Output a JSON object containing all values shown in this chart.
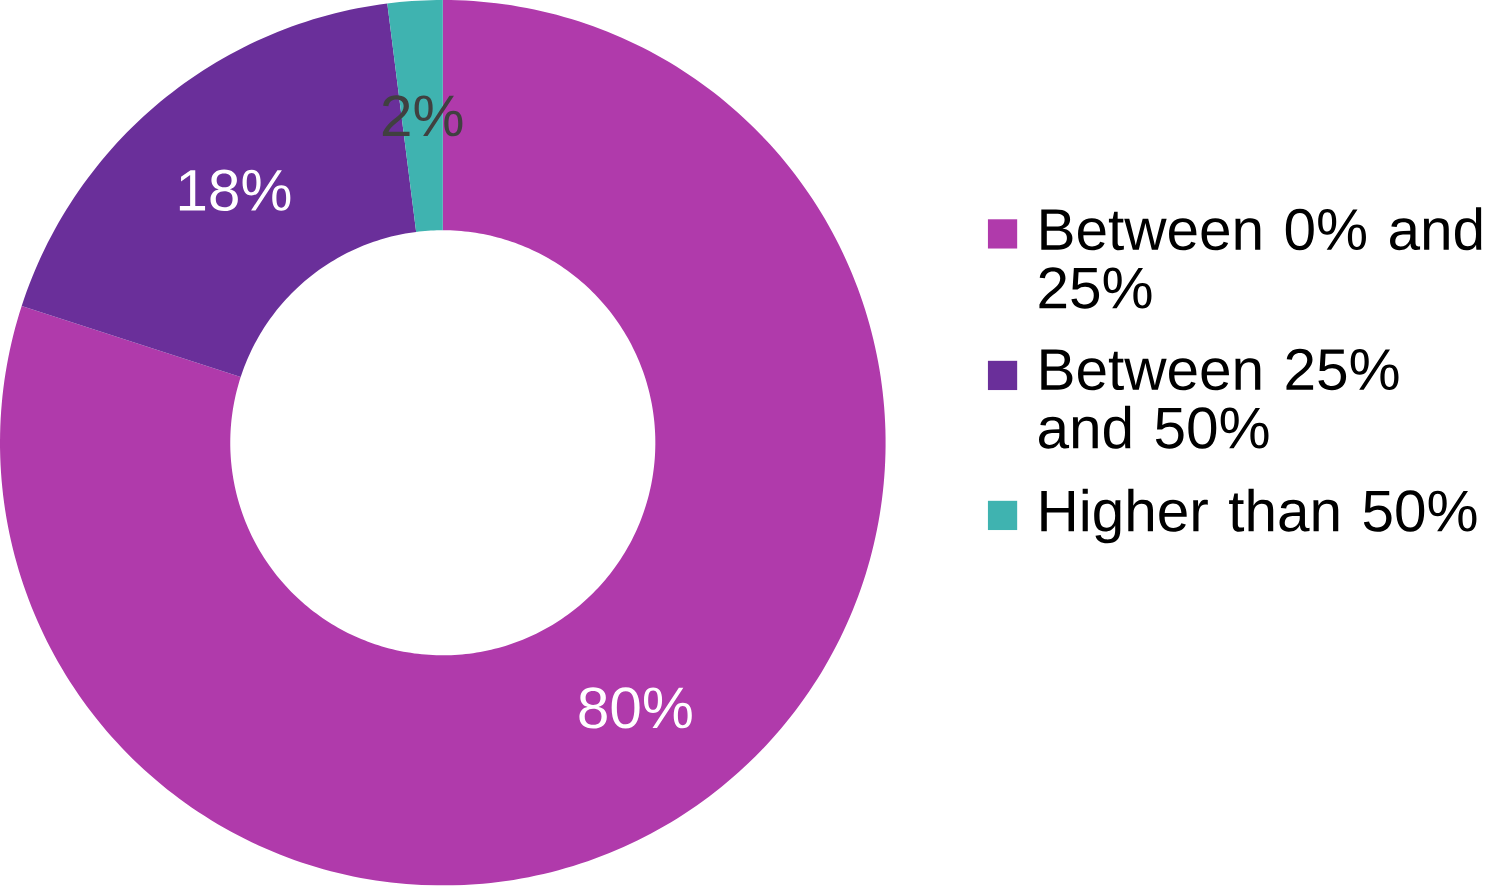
{
  "chart_data": {
    "type": "donut",
    "categories": [
      "Between 0% and 25%",
      "Between 25% and 50%",
      "Higher than 50%"
    ],
    "values": [
      80,
      18,
      2
    ],
    "colors": [
      "#b03aab",
      "#6a2f9a",
      "#3fb3b0"
    ],
    "value_labels": [
      "80%",
      "18%",
      "2%"
    ],
    "legend": "right"
  }
}
